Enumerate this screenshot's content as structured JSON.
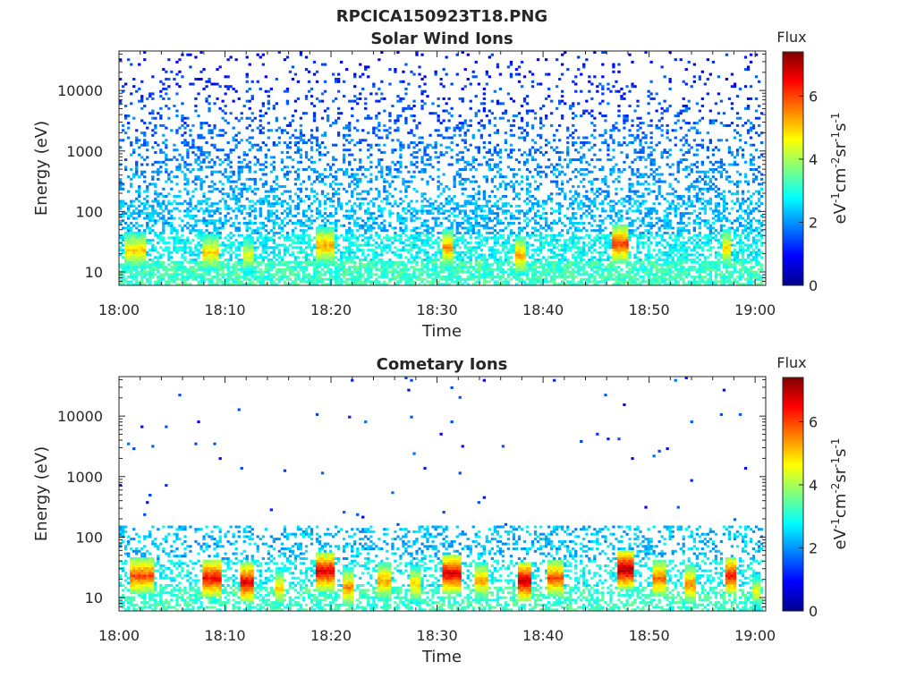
{
  "figure_title": "RPCICA150923T18.PNG",
  "colormap": "jet",
  "chart_data": [
    {
      "type": "heatmap",
      "title": "Solar Wind Ions",
      "xlabel": "Time",
      "ylabel": "Energy (eV)",
      "x_ticks": [
        "18:00",
        "18:10",
        "18:20",
        "18:30",
        "18:40",
        "18:50",
        "19:00"
      ],
      "x_range_minutes": [
        0,
        61
      ],
      "y_scale": "log",
      "y_ticks": [
        10,
        100,
        1000,
        10000
      ],
      "y_tick_labels": [
        "10",
        "100",
        "1000",
        "10000"
      ],
      "y_range": [
        6,
        45000
      ],
      "colorbar": {
        "title": "Flux",
        "label_main": "eV",
        "label_unit": "cm",
        "label_mid": "sr",
        "label_end": "s",
        "sup1": "-1",
        "sup2": "-2",
        "ticks": [
          0,
          2,
          4,
          6
        ],
        "range": [
          0,
          7.4
        ]
      },
      "bursts": [
        {
          "t": 0.5,
          "dt": 2.0,
          "e": 22,
          "flux": 5.0
        },
        {
          "t": 7.8,
          "dt": 1.6,
          "e": 20,
          "flux": 5.0
        },
        {
          "t": 11.5,
          "dt": 1.2,
          "e": 18,
          "flux": 4.6
        },
        {
          "t": 18.5,
          "dt": 1.6,
          "e": 26,
          "flux": 5.3
        },
        {
          "t": 30.3,
          "dt": 1.2,
          "e": 24,
          "flux": 5.4
        },
        {
          "t": 37.3,
          "dt": 1.0,
          "e": 18,
          "flux": 5.3
        },
        {
          "t": 46.5,
          "dt": 1.4,
          "e": 28,
          "flux": 6.1
        },
        {
          "t": 56.7,
          "dt": 0.8,
          "e": 24,
          "flux": 5.0
        }
      ],
      "background_density": 0.55,
      "hi_energy_density": 0.32
    },
    {
      "type": "heatmap",
      "title": "Cometary Ions",
      "xlabel": "Time",
      "ylabel": "Energy (eV)",
      "x_ticks": [
        "18:00",
        "18:10",
        "18:20",
        "18:30",
        "18:40",
        "18:50",
        "19:00"
      ],
      "x_range_minutes": [
        0,
        61
      ],
      "y_scale": "log",
      "y_ticks": [
        10,
        100,
        1000,
        10000
      ],
      "y_tick_labels": [
        "10",
        "100",
        "1000",
        "10000"
      ],
      "y_range": [
        6,
        45000
      ],
      "colorbar": {
        "title": "Flux",
        "label_main": "eV",
        "label_unit": "cm",
        "label_mid": "sr",
        "label_end": "s",
        "sup1": "-1",
        "sup2": "-2",
        "ticks": [
          0,
          2,
          4,
          6
        ],
        "range": [
          0,
          7.4
        ]
      },
      "bursts": [
        {
          "t": 1.0,
          "dt": 2.2,
          "e": 22,
          "flux": 6.0
        },
        {
          "t": 7.8,
          "dt": 1.8,
          "e": 20,
          "flux": 6.6
        },
        {
          "t": 11.2,
          "dt": 1.4,
          "e": 17,
          "flux": 6.8
        },
        {
          "t": 14.5,
          "dt": 1.0,
          "e": 14,
          "flux": 5.0
        },
        {
          "t": 18.3,
          "dt": 2.0,
          "e": 26,
          "flux": 6.8
        },
        {
          "t": 21.0,
          "dt": 1.0,
          "e": 14,
          "flux": 5.5
        },
        {
          "t": 24.3,
          "dt": 1.3,
          "e": 18,
          "flux": 5.4
        },
        {
          "t": 27.3,
          "dt": 1.0,
          "e": 16,
          "flux": 5.0
        },
        {
          "t": 30.5,
          "dt": 1.6,
          "e": 24,
          "flux": 6.8
        },
        {
          "t": 33.5,
          "dt": 1.2,
          "e": 18,
          "flux": 5.3
        },
        {
          "t": 37.5,
          "dt": 1.2,
          "e": 18,
          "flux": 7.0
        },
        {
          "t": 40.3,
          "dt": 1.5,
          "e": 20,
          "flux": 6.0
        },
        {
          "t": 46.8,
          "dt": 1.6,
          "e": 28,
          "flux": 7.2
        },
        {
          "t": 50.3,
          "dt": 1.2,
          "e": 20,
          "flux": 5.8
        },
        {
          "t": 53.3,
          "dt": 1.0,
          "e": 16,
          "flux": 5.6
        },
        {
          "t": 57.0,
          "dt": 1.0,
          "e": 22,
          "flux": 6.5
        },
        {
          "t": 59.5,
          "dt": 0.9,
          "e": 12,
          "flux": 4.5
        }
      ],
      "background_density": 0.35,
      "hi_energy_density": 0.004
    }
  ]
}
